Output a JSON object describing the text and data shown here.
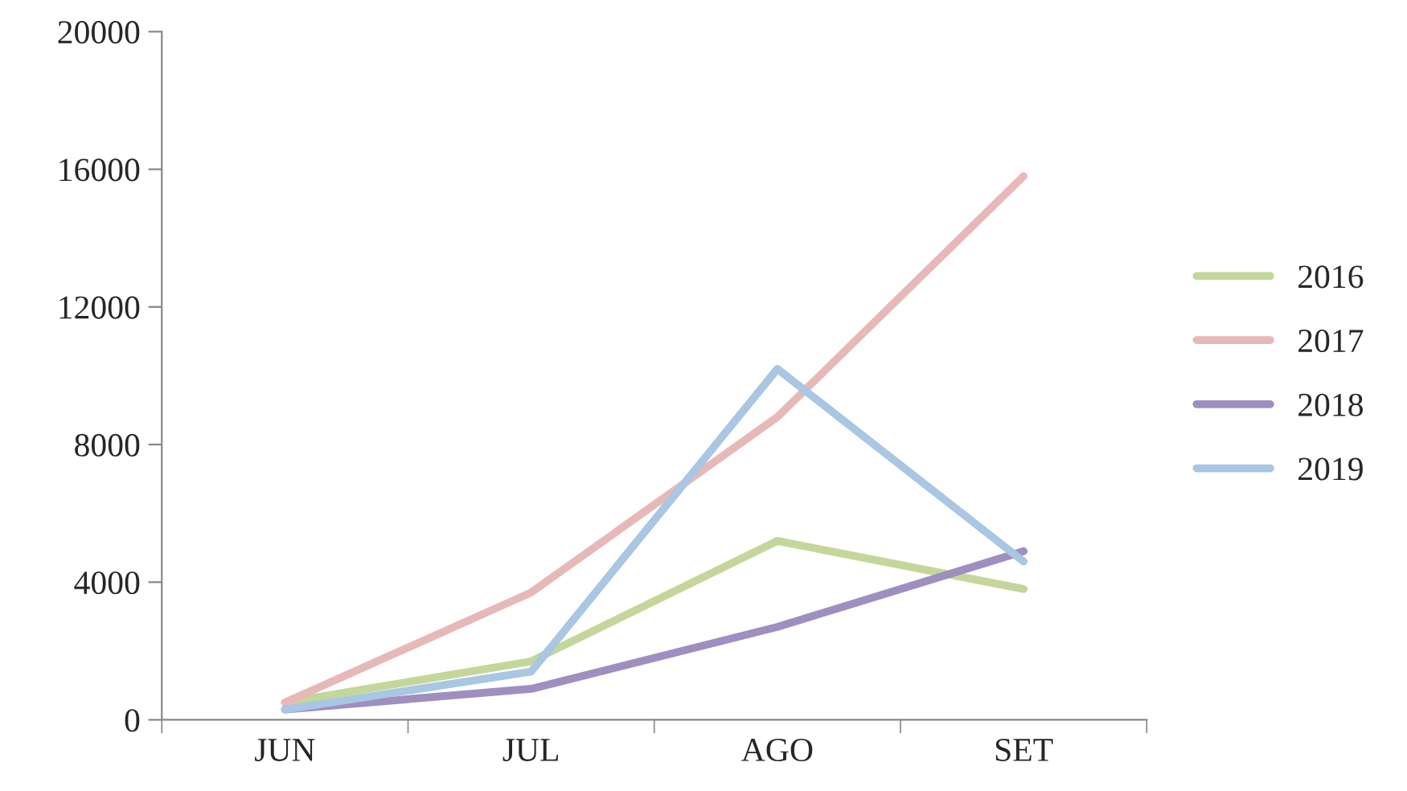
{
  "chart_data": {
    "type": "line",
    "categories": [
      "JUN",
      "JUL",
      "AGO",
      "SET"
    ],
    "series": [
      {
        "name": "2016",
        "color": "#c4d79b",
        "values": [
          500,
          1700,
          5200,
          3800
        ]
      },
      {
        "name": "2017",
        "color": "#e6b9b8",
        "values": [
          500,
          3700,
          8800,
          15800
        ]
      },
      {
        "name": "2018",
        "color": "#9f8fc0",
        "values": [
          300,
          900,
          2700,
          4900
        ]
      },
      {
        "name": "2019",
        "color": "#a9c6e3",
        "values": [
          300,
          1400,
          10200,
          4600
        ]
      }
    ],
    "ylim": [
      0,
      20000
    ],
    "yticks": [
      0,
      4000,
      8000,
      12000,
      16000,
      20000
    ],
    "grid": false,
    "legend": "right",
    "marker": "none",
    "line_style": "solid"
  }
}
